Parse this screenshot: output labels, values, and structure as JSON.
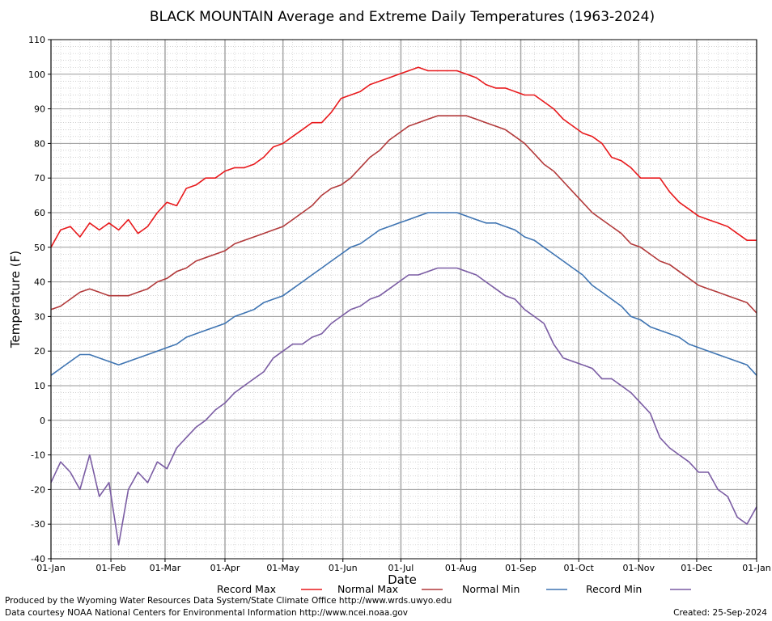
{
  "chart_data": {
    "type": "line",
    "title": "BLACK MOUNTAIN Average and Extreme Daily Temperatures (1963-2024)",
    "xlabel": "Date",
    "ylabel": "Temperature (F)",
    "ylim": [
      -40,
      110
    ],
    "yticks": [
      110,
      100,
      90,
      80,
      70,
      60,
      50,
      40,
      30,
      20,
      10,
      0,
      -10,
      -20,
      -30,
      -40
    ],
    "xlim": [
      0,
      365
    ],
    "xticks": [
      {
        "day": 0,
        "label": "01-Jan"
      },
      {
        "day": 31,
        "label": "01-Feb"
      },
      {
        "day": 59,
        "label": "01-Mar"
      },
      {
        "day": 90,
        "label": "01-Apr"
      },
      {
        "day": 120,
        "label": "01-May"
      },
      {
        "day": 151,
        "label": "01-Jun"
      },
      {
        "day": 181,
        "label": "01-Jul"
      },
      {
        "day": 212,
        "label": "01-Aug"
      },
      {
        "day": 243,
        "label": "01-Sep"
      },
      {
        "day": 273,
        "label": "01-Oct"
      },
      {
        "day": 304,
        "label": "01-Nov"
      },
      {
        "day": 334,
        "label": "01-Dec"
      },
      {
        "day": 365,
        "label": "01-Jan"
      }
    ],
    "grid": true,
    "legend_position": "bottom",
    "series": [
      {
        "name": "Record Max",
        "color": "#e8191c",
        "x": [
          0,
          5,
          10,
          15,
          20,
          25,
          30,
          35,
          40,
          45,
          50,
          55,
          60,
          65,
          70,
          75,
          80,
          85,
          90,
          95,
          100,
          105,
          110,
          115,
          120,
          125,
          130,
          135,
          140,
          145,
          150,
          155,
          160,
          165,
          170,
          175,
          180,
          185,
          190,
          195,
          200,
          205,
          210,
          215,
          220,
          225,
          230,
          235,
          240,
          245,
          250,
          255,
          260,
          265,
          270,
          275,
          280,
          285,
          290,
          295,
          300,
          305,
          310,
          315,
          320,
          325,
          330,
          335,
          340,
          345,
          350,
          355,
          360,
          365
        ],
        "values": [
          50,
          55,
          56,
          53,
          57,
          55,
          57,
          55,
          58,
          54,
          56,
          60,
          63,
          62,
          67,
          68,
          70,
          70,
          72,
          73,
          73,
          74,
          76,
          79,
          80,
          82,
          84,
          86,
          86,
          89,
          93,
          94,
          95,
          97,
          98,
          99,
          100,
          101,
          102,
          101,
          101,
          101,
          101,
          100,
          99,
          97,
          96,
          96,
          95,
          94,
          94,
          92,
          90,
          87,
          85,
          83,
          82,
          80,
          76,
          75,
          73,
          70,
          70,
          70,
          66,
          63,
          61,
          59,
          58,
          57,
          56,
          54,
          52,
          52
        ]
      },
      {
        "name": "Normal Max",
        "color": "#b2393a",
        "x": [
          0,
          5,
          10,
          15,
          20,
          25,
          30,
          35,
          40,
          45,
          50,
          55,
          60,
          65,
          70,
          75,
          80,
          85,
          90,
          95,
          100,
          105,
          110,
          115,
          120,
          125,
          130,
          135,
          140,
          145,
          150,
          155,
          160,
          165,
          170,
          175,
          180,
          185,
          190,
          195,
          200,
          205,
          210,
          215,
          220,
          225,
          230,
          235,
          240,
          245,
          250,
          255,
          260,
          265,
          270,
          275,
          280,
          285,
          290,
          295,
          300,
          305,
          310,
          315,
          320,
          325,
          330,
          335,
          340,
          345,
          350,
          355,
          360,
          365
        ],
        "values": [
          32,
          33,
          35,
          37,
          38,
          37,
          36,
          36,
          36,
          37,
          38,
          40,
          41,
          43,
          44,
          46,
          47,
          48,
          49,
          51,
          52,
          53,
          54,
          55,
          56,
          58,
          60,
          62,
          65,
          67,
          68,
          70,
          73,
          76,
          78,
          81,
          83,
          85,
          86,
          87,
          88,
          88,
          88,
          88,
          87,
          86,
          85,
          84,
          82,
          80,
          77,
          74,
          72,
          69,
          66,
          63,
          60,
          58,
          56,
          54,
          51,
          50,
          48,
          46,
          45,
          43,
          41,
          39,
          38,
          37,
          36,
          35,
          34,
          31
        ]
      },
      {
        "name": "Normal Min",
        "color": "#3e74b2",
        "x": [
          0,
          5,
          10,
          15,
          20,
          25,
          30,
          35,
          40,
          45,
          50,
          55,
          60,
          65,
          70,
          75,
          80,
          85,
          90,
          95,
          100,
          105,
          110,
          115,
          120,
          125,
          130,
          135,
          140,
          145,
          150,
          155,
          160,
          165,
          170,
          175,
          180,
          185,
          190,
          195,
          200,
          205,
          210,
          215,
          220,
          225,
          230,
          235,
          240,
          245,
          250,
          255,
          260,
          265,
          270,
          275,
          280,
          285,
          290,
          295,
          300,
          305,
          310,
          315,
          320,
          325,
          330,
          335,
          340,
          345,
          350,
          355,
          360,
          365
        ],
        "values": [
          13,
          15,
          17,
          19,
          19,
          18,
          17,
          16,
          17,
          18,
          19,
          20,
          21,
          22,
          24,
          25,
          26,
          27,
          28,
          30,
          31,
          32,
          34,
          35,
          36,
          38,
          40,
          42,
          44,
          46,
          48,
          50,
          51,
          53,
          55,
          56,
          57,
          58,
          59,
          60,
          60,
          60,
          60,
          59,
          58,
          57,
          57,
          56,
          55,
          53,
          52,
          50,
          48,
          46,
          44,
          42,
          39,
          37,
          35,
          33,
          30,
          29,
          27,
          26,
          25,
          24,
          22,
          21,
          20,
          19,
          18,
          17,
          16,
          13
        ]
      },
      {
        "name": "Record Min",
        "color": "#7a5ca3",
        "x": [
          0,
          5,
          10,
          15,
          20,
          25,
          30,
          35,
          40,
          45,
          50,
          55,
          60,
          65,
          70,
          75,
          80,
          85,
          90,
          95,
          100,
          105,
          110,
          115,
          120,
          125,
          130,
          135,
          140,
          145,
          150,
          155,
          160,
          165,
          170,
          175,
          180,
          185,
          190,
          195,
          200,
          205,
          210,
          215,
          220,
          225,
          230,
          235,
          240,
          245,
          250,
          255,
          260,
          265,
          270,
          275,
          280,
          285,
          290,
          295,
          300,
          305,
          310,
          315,
          320,
          325,
          330,
          335,
          340,
          345,
          350,
          355,
          360,
          365
        ],
        "values": [
          -18,
          -12,
          -15,
          -20,
          -10,
          -22,
          -18,
          -36,
          -20,
          -15,
          -18,
          -12,
          -14,
          -8,
          -5,
          -2,
          0,
          3,
          5,
          8,
          10,
          12,
          14,
          18,
          20,
          22,
          22,
          24,
          25,
          28,
          30,
          32,
          33,
          35,
          36,
          38,
          40,
          42,
          42,
          43,
          44,
          44,
          44,
          43,
          42,
          40,
          38,
          36,
          35,
          32,
          30,
          28,
          22,
          18,
          17,
          16,
          15,
          12,
          12,
          10,
          8,
          5,
          2,
          -5,
          -8,
          -10,
          -12,
          -15,
          -15,
          -20,
          -22,
          -28,
          -30,
          -25
        ]
      }
    ]
  },
  "footer": {
    "credit_line1": "Produced by the Wyoming Water Resources Data System/State Climate Office http://www.wrds.uwyo.edu",
    "credit_line2": "Data courtesy NOAA National Centers for Environmental Information http://www.ncei.noaa.gov",
    "created": "Created:  25-Sep-2024"
  }
}
